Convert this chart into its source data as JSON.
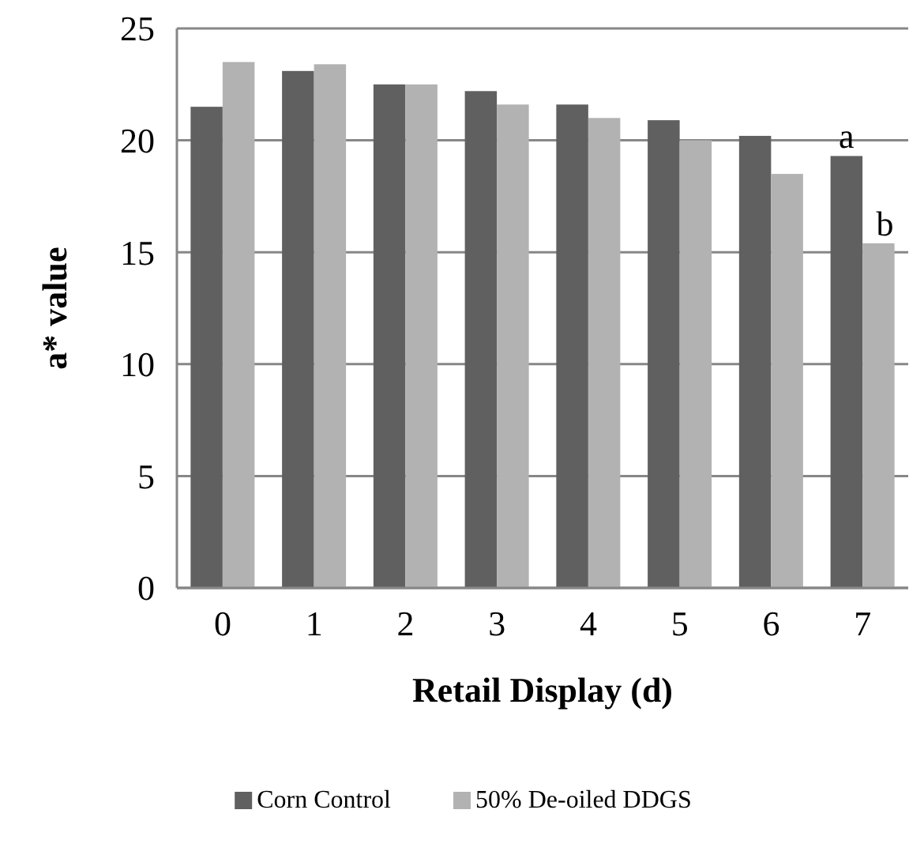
{
  "chart_data": {
    "type": "bar",
    "xlabel": "Retail Display (d)",
    "ylabel": "a* value",
    "categories": [
      "0",
      "1",
      "2",
      "3",
      "4",
      "5",
      "6",
      "7"
    ],
    "series": [
      {
        "name": "Corn Control",
        "color": "#606060",
        "values": [
          21.5,
          23.1,
          22.5,
          22.2,
          21.6,
          20.9,
          20.2,
          19.3
        ]
      },
      {
        "name": "50% De-oiled DDGS",
        "color": "#b2b2b2",
        "values": [
          23.5,
          23.4,
          22.5,
          21.6,
          21.0,
          20.0,
          18.5,
          15.4
        ]
      }
    ],
    "ylim": [
      0,
      25
    ],
    "yticks": [
      0,
      5,
      10,
      15,
      20,
      25
    ],
    "grid": "y",
    "legend": "bottom",
    "annotations": [
      {
        "text": "a",
        "x": "7",
        "y": 19.3
      },
      {
        "text": "b",
        "x": "7",
        "y": 15.4
      }
    ]
  }
}
